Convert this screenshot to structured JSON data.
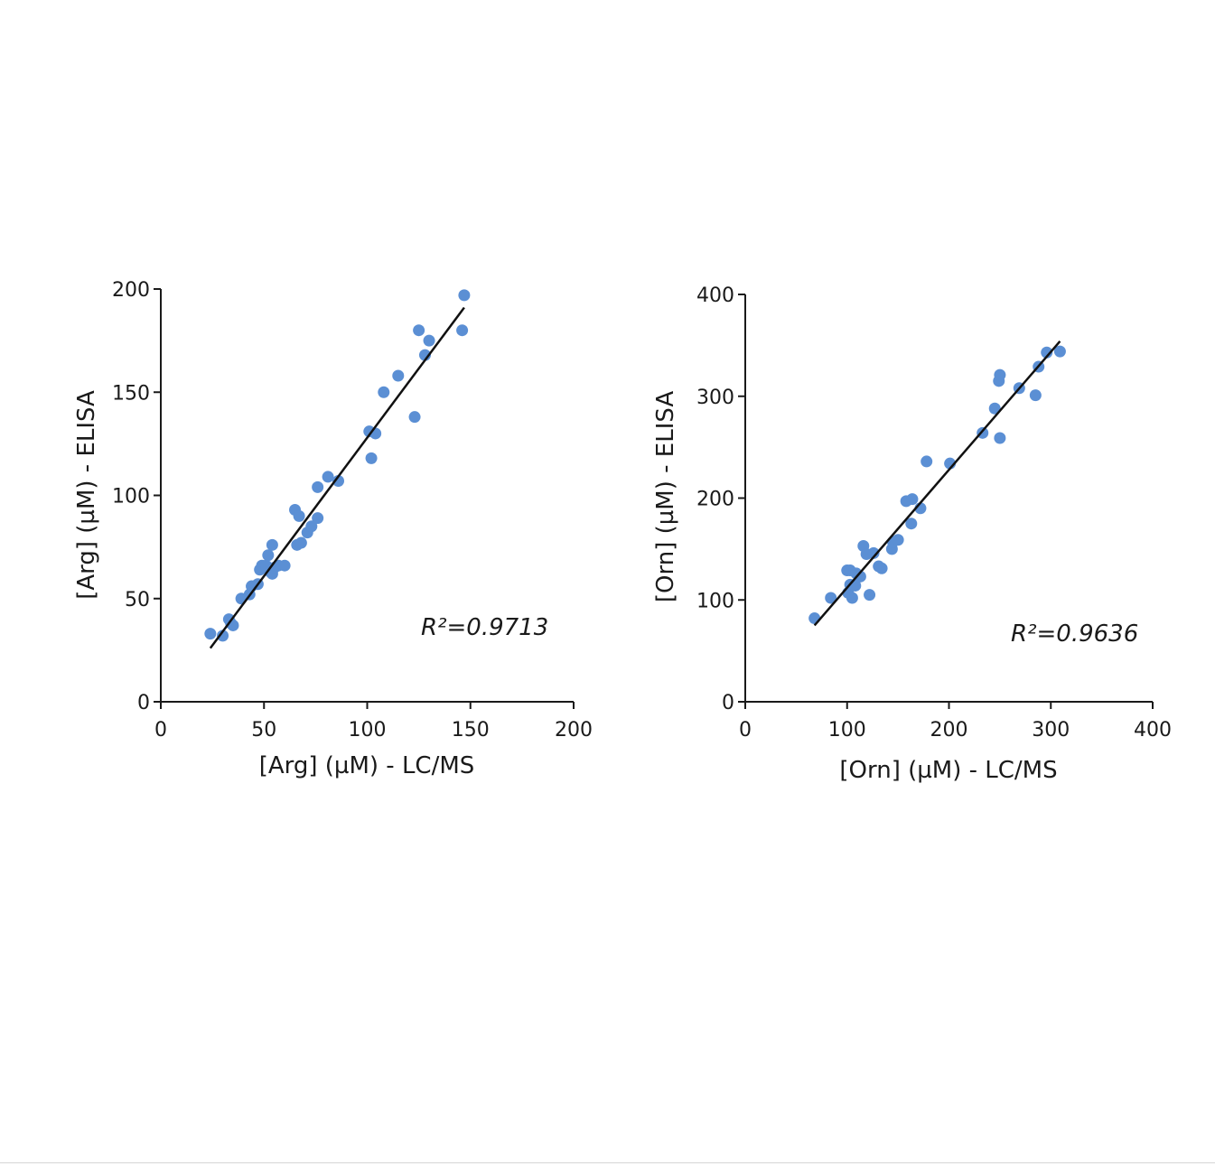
{
  "chart_data": [
    {
      "type": "scatter",
      "xlabel": "[Arg] (µM) - LC/MS",
      "ylabel": "[Arg] (µM) - ELISA",
      "xlim": [
        0,
        200
      ],
      "ylim": [
        0,
        200
      ],
      "xticks": [
        "0",
        "50",
        "100",
        "150",
        "200"
      ],
      "yticks": [
        "0",
        "50",
        "100",
        "150",
        "200"
      ],
      "annotation": "R²=0.9713",
      "point_color": "#5b8fd4",
      "fit_line": {
        "x": [
          24,
          147
        ],
        "y": [
          26,
          191
        ]
      },
      "series": [
        {
          "points": [
            [
              24,
              33
            ],
            [
              30,
              32
            ],
            [
              33,
              40
            ],
            [
              34,
              38
            ],
            [
              35,
              37
            ],
            [
              39,
              50
            ],
            [
              43,
              52
            ],
            [
              44,
              56
            ],
            [
              47,
              57
            ],
            [
              48,
              64
            ],
            [
              49,
              66
            ],
            [
              51,
              66
            ],
            [
              52,
              71
            ],
            [
              53,
              63
            ],
            [
              54,
              76
            ],
            [
              54,
              62
            ],
            [
              55,
              65
            ],
            [
              57,
              66
            ],
            [
              60,
              66
            ],
            [
              65,
              93
            ],
            [
              66,
              76
            ],
            [
              67,
              90
            ],
            [
              68,
              77
            ],
            [
              71,
              82
            ],
            [
              73,
              85
            ],
            [
              76,
              104
            ],
            [
              76,
              89
            ],
            [
              81,
              109
            ],
            [
              86,
              107
            ],
            [
              101,
              131
            ],
            [
              102,
              118
            ],
            [
              104,
              130
            ],
            [
              108,
              150
            ],
            [
              115,
              158
            ],
            [
              123,
              138
            ],
            [
              125,
              180
            ],
            [
              128,
              168
            ],
            [
              130,
              175
            ],
            [
              146,
              180
            ],
            [
              147,
              197
            ]
          ]
        }
      ]
    },
    {
      "type": "scatter",
      "xlabel": "[Orn] (µM) - LC/MS",
      "ylabel": "[Orn] (µM) - ELISA",
      "xlim": [
        0,
        400
      ],
      "ylim": [
        0,
        400
      ],
      "xticks": [
        "0",
        "100",
        "200",
        "300",
        "400"
      ],
      "yticks": [
        "0",
        "100",
        "200",
        "300",
        "400"
      ],
      "annotation": "R²=0.9636",
      "point_color": "#5b8fd4",
      "fit_line": {
        "x": [
          68,
          309
        ],
        "y": [
          75,
          354
        ]
      },
      "series": [
        {
          "points": [
            [
              68,
              82
            ],
            [
              84,
              102
            ],
            [
              100,
              129
            ],
            [
              101,
              107
            ],
            [
              103,
              129
            ],
            [
              103,
              115
            ],
            [
              105,
              102
            ],
            [
              108,
              114
            ],
            [
              109,
              126
            ],
            [
              113,
              123
            ],
            [
              116,
              153
            ],
            [
              119,
              145
            ],
            [
              122,
              105
            ],
            [
              126,
              146
            ],
            [
              131,
              133
            ],
            [
              134,
              131
            ],
            [
              144,
              150
            ],
            [
              145,
              157
            ],
            [
              150,
              159
            ],
            [
              158,
              197
            ],
            [
              163,
              175
            ],
            [
              164,
              199
            ],
            [
              172,
              190
            ],
            [
              178,
              236
            ],
            [
              201,
              234
            ],
            [
              233,
              264
            ],
            [
              245,
              288
            ],
            [
              249,
              315
            ],
            [
              250,
              321
            ],
            [
              250,
              259
            ],
            [
              269,
              308
            ],
            [
              285,
              301
            ],
            [
              288,
              329
            ],
            [
              296,
              343
            ],
            [
              309,
              344
            ]
          ]
        }
      ]
    }
  ]
}
